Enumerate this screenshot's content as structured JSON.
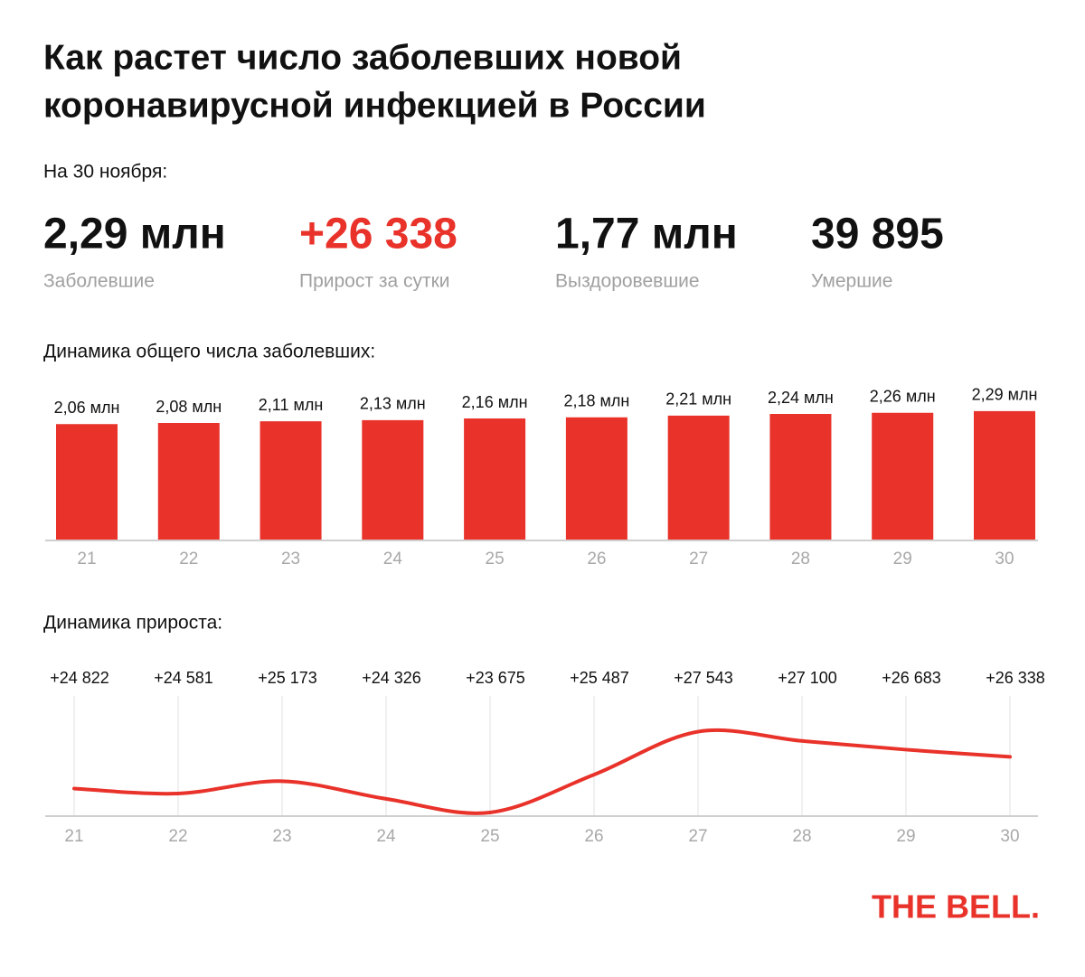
{
  "header": {
    "title_lines": [
      "Как растет число заболевших новой",
      "коронавирусной инфекцией в России"
    ]
  },
  "summary": {
    "date_label": "На 30 ноября:",
    "items": [
      {
        "value": "2,29 млн",
        "label": "Заболевшие",
        "color": "#111111"
      },
      {
        "value": "+26 338",
        "label": "Прирост за сутки",
        "color": "#e8322a"
      },
      {
        "value": "1,77 млн",
        "label": "Выздоровевшие",
        "color": "#111111"
      },
      {
        "value": "39 895",
        "label": "Умершие",
        "color": "#111111"
      }
    ]
  },
  "chart_data": [
    {
      "type": "bar",
      "title": "Динамика общего числа заболевших:",
      "categories": [
        "21",
        "22",
        "23",
        "24",
        "25",
        "26",
        "27",
        "28",
        "29",
        "30"
      ],
      "values": [
        2.06,
        2.08,
        2.11,
        2.13,
        2.16,
        2.18,
        2.21,
        2.24,
        2.26,
        2.29
      ],
      "value_labels": [
        "2,06 млн",
        "2,08 млн",
        "2,11 млн",
        "2,13 млн",
        "2,16 млн",
        "2,18 млн",
        "2,21 млн",
        "2,24 млн",
        "2,26 млн",
        "2,29 млн"
      ],
      "color": "#e8322a",
      "ylim": [
        0,
        2.4
      ]
    },
    {
      "type": "line",
      "title": "Динамика прироста:",
      "categories": [
        "21",
        "22",
        "23",
        "24",
        "25",
        "26",
        "27",
        "28",
        "29",
        "30"
      ],
      "values": [
        24822,
        24581,
        25173,
        24326,
        23675,
        25487,
        27543,
        27100,
        26683,
        26338
      ],
      "value_labels": [
        "+24 822",
        "+24 581",
        "+25 173",
        "+24 326",
        "+23 675",
        "+25 487",
        "+27 543",
        "+27 100",
        "+26 683",
        "+26 338"
      ],
      "color": "#e8322a",
      "ylim": [
        23500,
        28000
      ],
      "grid": true
    }
  ],
  "footer": {
    "logo": "THE BELL."
  }
}
